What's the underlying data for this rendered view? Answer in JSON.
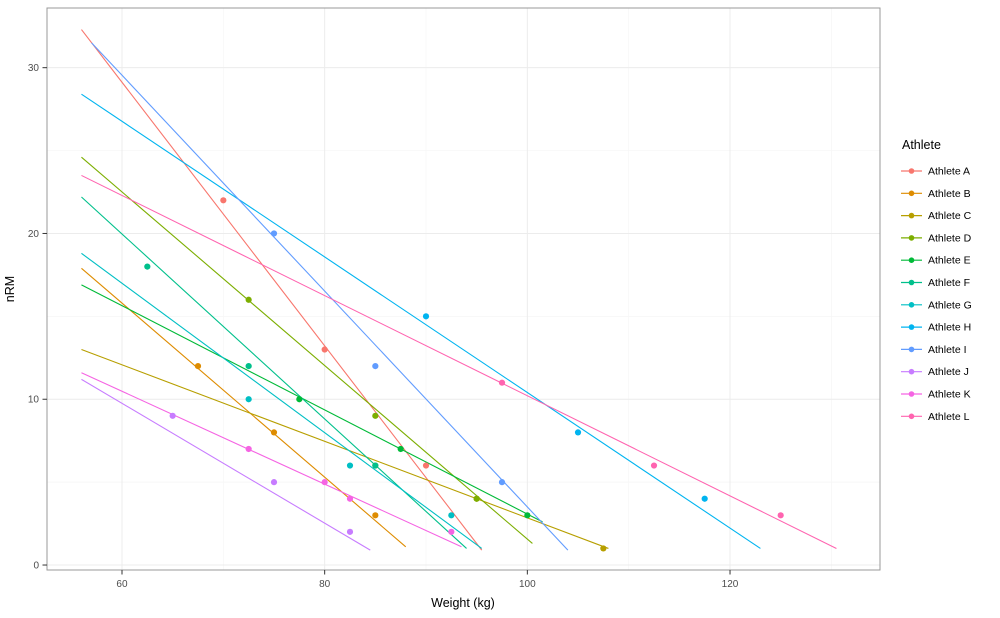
{
  "figure": {
    "background": "#FFFFFF",
    "panel_background": "#FFFFFF",
    "panel_border": "#999999",
    "grid_major_color": "#ECECEC",
    "grid_minor_color": "#F6F6F6",
    "tick_color": "#333333",
    "tick_label_color": "#4D4D4D"
  },
  "chart_data": {
    "type": "scatter",
    "title": "",
    "xlabel": "Weight (kg)",
    "ylabel": "nRM",
    "legend_title": "Athlete",
    "legend_position": "right",
    "grid": "on",
    "xlim": [
      52.6,
      134.8
    ],
    "ylim": [
      -0.3,
      33.6
    ],
    "x_ticks": [
      60,
      80,
      100,
      120
    ],
    "y_ticks": [
      0,
      10,
      20,
      30
    ],
    "x_minor_ticks": [
      70,
      90,
      110,
      130
    ],
    "y_minor_ticks": [
      5,
      15,
      25
    ],
    "series": [
      {
        "name": "Athlete A",
        "color": "#F8766D",
        "points": [
          [
            70,
            22
          ],
          [
            80,
            13
          ],
          [
            90,
            6
          ]
        ],
        "trend": {
          "x1": 56,
          "y1": 32.3,
          "x2": 95.5,
          "y2": 0.9
        }
      },
      {
        "name": "Athlete B",
        "color": "#DE8C00",
        "points": [
          [
            67.5,
            12
          ],
          [
            75,
            8
          ],
          [
            85,
            3
          ]
        ],
        "trend": {
          "x1": 56,
          "y1": 17.9,
          "x2": 88,
          "y2": 1.1
        }
      },
      {
        "name": "Athlete C",
        "color": "#B79F00",
        "points": [
          [
            85,
            6
          ],
          [
            95,
            4
          ],
          [
            107.5,
            1
          ]
        ],
        "trend": {
          "x1": 56,
          "y1": 13.0,
          "x2": 108,
          "y2": 1.0
        }
      },
      {
        "name": "Athlete D",
        "color": "#7CAE00",
        "points": [
          [
            72.5,
            16
          ],
          [
            85,
            9
          ],
          [
            95,
            4
          ]
        ],
        "trend": {
          "x1": 56,
          "y1": 24.6,
          "x2": 100.5,
          "y2": 1.3
        }
      },
      {
        "name": "Athlete E",
        "color": "#00BA38",
        "points": [
          [
            77.5,
            10
          ],
          [
            87.5,
            7
          ],
          [
            100,
            3
          ]
        ],
        "trend": {
          "x1": 56,
          "y1": 16.9,
          "x2": 101.5,
          "y2": 2.6
        }
      },
      {
        "name": "Athlete F",
        "color": "#00C08B",
        "points": [
          [
            62.5,
            18
          ],
          [
            72.5,
            12
          ],
          [
            85,
            6
          ]
        ],
        "trend": {
          "x1": 56,
          "y1": 22.2,
          "x2": 94,
          "y2": 1.0
        }
      },
      {
        "name": "Athlete G",
        "color": "#00BFC4",
        "points": [
          [
            72.5,
            10
          ],
          [
            82.5,
            6
          ],
          [
            92.5,
            3
          ]
        ],
        "trend": {
          "x1": 56,
          "y1": 18.8,
          "x2": 95.5,
          "y2": 1.0
        }
      },
      {
        "name": "Athlete H",
        "color": "#00B4F0",
        "points": [
          [
            90,
            15
          ],
          [
            105,
            8
          ],
          [
            117.5,
            4
          ]
        ],
        "trend": {
          "x1": 56,
          "y1": 28.4,
          "x2": 123,
          "y2": 1.0
        }
      },
      {
        "name": "Athlete I",
        "color": "#619CFF",
        "points": [
          [
            75,
            20
          ],
          [
            85,
            12
          ],
          [
            97.5,
            5
          ]
        ],
        "trend": {
          "x1": 57,
          "y1": 31.5,
          "x2": 104,
          "y2": 0.9
        }
      },
      {
        "name": "Athlete J",
        "color": "#C77CFF",
        "points": [
          [
            65,
            9
          ],
          [
            75,
            5
          ],
          [
            82.5,
            2
          ]
        ],
        "trend": {
          "x1": 56,
          "y1": 11.2,
          "x2": 84.5,
          "y2": 0.9
        }
      },
      {
        "name": "Athlete K",
        "color": "#F564E3",
        "points": [
          [
            72.5,
            7
          ],
          [
            80,
            5
          ],
          [
            82.5,
            4
          ],
          [
            92.5,
            2
          ]
        ],
        "trend": {
          "x1": 56,
          "y1": 11.6,
          "x2": 93.5,
          "y2": 1.1
        }
      },
      {
        "name": "Athlete L",
        "color": "#FF64B0",
        "points": [
          [
            97.5,
            11
          ],
          [
            112.5,
            6
          ],
          [
            125,
            3
          ]
        ],
        "trend": {
          "x1": 56,
          "y1": 23.5,
          "x2": 130.5,
          "y2": 1.0
        }
      }
    ]
  }
}
